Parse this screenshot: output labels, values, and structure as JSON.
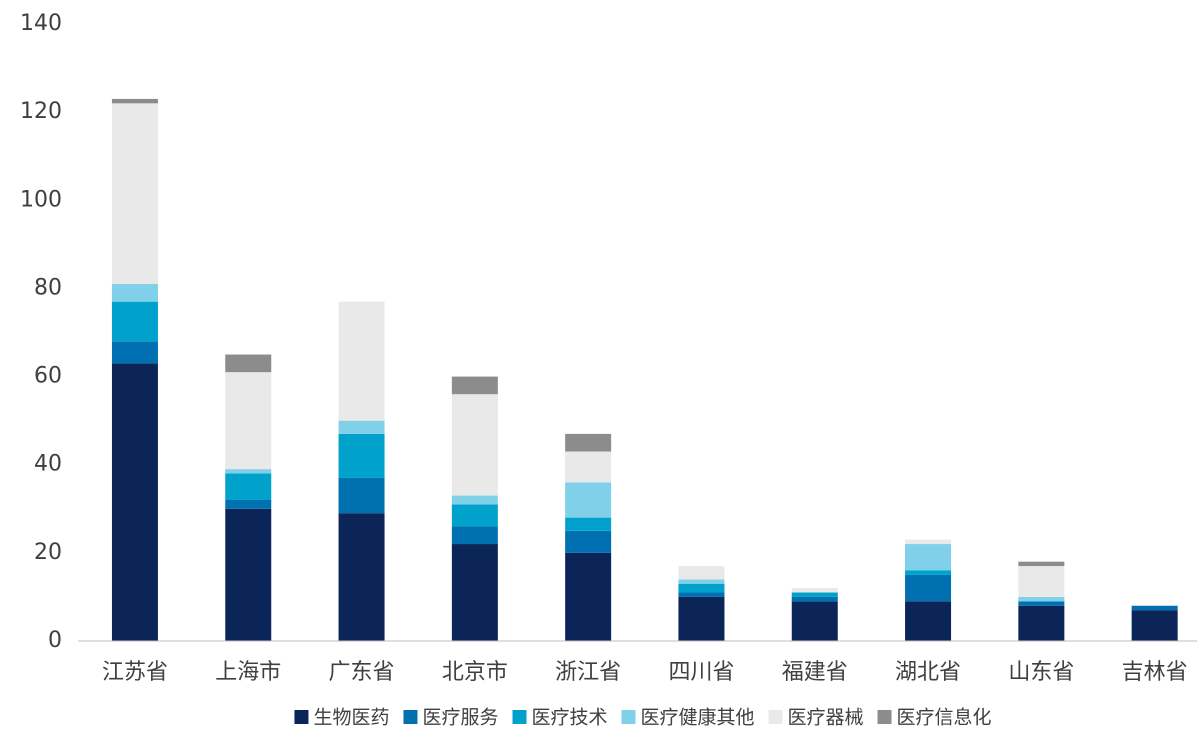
{
  "chart_data": {
    "type": "stacked_bar",
    "categories": [
      "江苏省",
      "上海市",
      "广东省",
      "北京市",
      "浙江省",
      "四川省",
      "福建省",
      "湖北省",
      "山东省",
      "吉林省"
    ],
    "series": [
      {
        "name": "生物医药",
        "color": "#0b2559",
        "values": [
          63,
          30,
          29,
          22,
          20,
          10,
          9,
          9,
          8,
          7
        ]
      },
      {
        "name": "医疗服务",
        "color": "#0070b0",
        "values": [
          5,
          2,
          8,
          4,
          5,
          1,
          1,
          6,
          1,
          1
        ]
      },
      {
        "name": "医疗技术",
        "color": "#00a2cc",
        "values": [
          9,
          6,
          10,
          5,
          3,
          2,
          1,
          1,
          0,
          0
        ]
      },
      {
        "name": "医疗健康其他",
        "color": "#80d0ea",
        "values": [
          4,
          1,
          3,
          2,
          8,
          1,
          0,
          6,
          1,
          0
        ]
      },
      {
        "name": "医疗器械",
        "color": "#e9e9e9",
        "values": [
          41,
          22,
          27,
          23,
          7,
          3,
          1,
          1,
          7,
          0
        ]
      },
      {
        "name": "医疗信息化",
        "color": "#8c8c8c",
        "values": [
          1,
          4,
          0,
          4,
          4,
          0,
          0,
          0,
          1,
          0
        ]
      }
    ],
    "ylim": [
      0,
      140
    ],
    "yticks": [
      0,
      20,
      40,
      60,
      80,
      100,
      120,
      140
    ],
    "grid": false,
    "legend": "bottom"
  }
}
